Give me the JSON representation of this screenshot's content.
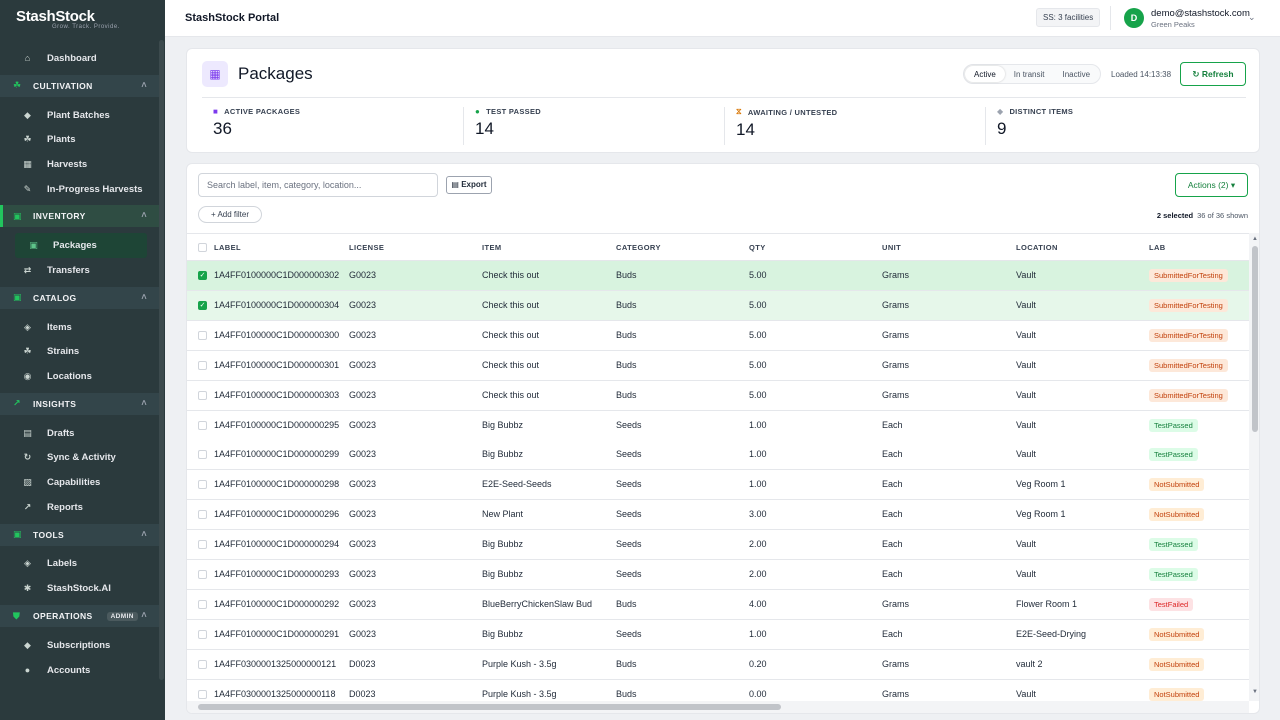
{
  "brand": {
    "name": "StashStock",
    "tagline": "Grow. Track. Provide."
  },
  "sidebar": {
    "dashboard": "Dashboard",
    "sections": [
      {
        "key": "cultivation",
        "label": "CULTIVATION",
        "items": [
          "Plant Batches",
          "Plants",
          "Harvests",
          "In-Progress Harvests"
        ]
      },
      {
        "key": "inventory",
        "label": "INVENTORY",
        "items": [
          "Packages",
          "Transfers"
        ]
      },
      {
        "key": "catalog",
        "label": "CATALOG",
        "items": [
          "Items",
          "Strains",
          "Locations"
        ]
      },
      {
        "key": "insights",
        "label": "INSIGHTS",
        "items": [
          "Drafts",
          "Sync & Activity",
          "Capabilities",
          "Reports"
        ]
      },
      {
        "key": "tools",
        "label": "TOOLS",
        "items": [
          "Labels",
          "StashStock.AI"
        ]
      },
      {
        "key": "operations",
        "label": "OPERATIONS",
        "badge": "ADMIN",
        "items": [
          "Subscriptions",
          "Accounts"
        ]
      }
    ]
  },
  "topbar": {
    "title": "StashStock Portal",
    "facilities": "SS: 3 facilities",
    "avatar_letter": "D",
    "email": "demo@stashstock.com",
    "org": "Green Peaks"
  },
  "header": {
    "title": "Packages",
    "filters": [
      "Active",
      "In transit",
      "Inactive"
    ],
    "loaded": "Loaded 14:13:38",
    "refresh": "Refresh",
    "stats": [
      {
        "label": "ACTIVE PACKAGES",
        "value": "36",
        "color": "#7c3aed"
      },
      {
        "label": "TEST PASSED",
        "value": "14",
        "color": "#16a34a"
      },
      {
        "label": "AWAITING / UNTESTED",
        "value": "14",
        "color": "#d97706"
      },
      {
        "label": "DISTINCT ITEMS",
        "value": "9",
        "color": "#9ca3af"
      }
    ]
  },
  "toolbar": {
    "search_placeholder": "Search label, item, category, location...",
    "export": "Export",
    "actions": "Actions (2)",
    "add_filter": "Add filter",
    "selected": "2 selected",
    "shown": "36 of 36 shown"
  },
  "table": {
    "columns": [
      "LABEL",
      "LICENSE",
      "ITEM",
      "CATEGORY",
      "QTY",
      "UNIT",
      "LOCATION",
      "LAB"
    ],
    "rows": [
      {
        "checked": true,
        "label": "1A4FF0100000C1D000000302",
        "license": "G0023",
        "item": "Check this out",
        "category": "Buds",
        "qty": "5.00",
        "unit": "Grams",
        "location": "Vault",
        "lab": "SubmittedForTesting"
      },
      {
        "checked": true,
        "label": "1A4FF0100000C1D000000304",
        "license": "G0023",
        "item": "Check this out",
        "category": "Buds",
        "qty": "5.00",
        "unit": "Grams",
        "location": "Vault",
        "lab": "SubmittedForTesting"
      },
      {
        "checked": false,
        "label": "1A4FF0100000C1D000000300",
        "license": "G0023",
        "item": "Check this out",
        "category": "Buds",
        "qty": "5.00",
        "unit": "Grams",
        "location": "Vault",
        "lab": "SubmittedForTesting"
      },
      {
        "checked": false,
        "label": "1A4FF0100000C1D000000301",
        "license": "G0023",
        "item": "Check this out",
        "category": "Buds",
        "qty": "5.00",
        "unit": "Grams",
        "location": "Vault",
        "lab": "SubmittedForTesting"
      },
      {
        "checked": false,
        "label": "1A4FF0100000C1D000000303",
        "license": "G0023",
        "item": "Check this out",
        "category": "Buds",
        "qty": "5.00",
        "unit": "Grams",
        "location": "Vault",
        "lab": "SubmittedForTesting"
      },
      {
        "checked": false,
        "label": "1A4FF0100000C1D000000295",
        "license": "G0023",
        "item": "Big Bubbz",
        "category": "Seeds",
        "qty": "1.00",
        "unit": "Each",
        "location": "Vault",
        "lab": "TestPassed"
      },
      {
        "checked": false,
        "label": "1A4FF0100000C1D000000299",
        "license": "G0023",
        "item": "Big Bubbz",
        "category": "Seeds",
        "qty": "1.00",
        "unit": "Each",
        "location": "Vault",
        "lab": "TestPassed"
      },
      {
        "checked": false,
        "label": "1A4FF0100000C1D000000298",
        "license": "G0023",
        "item": "E2E-Seed-Seeds",
        "category": "Seeds",
        "qty": "1.00",
        "unit": "Each",
        "location": "Veg Room 1",
        "lab": "NotSubmitted"
      },
      {
        "checked": false,
        "label": "1A4FF0100000C1D000000296",
        "license": "G0023",
        "item": "New Plant",
        "category": "Seeds",
        "qty": "3.00",
        "unit": "Each",
        "location": "Veg Room 1",
        "lab": "NotSubmitted"
      },
      {
        "checked": false,
        "label": "1A4FF0100000C1D000000294",
        "license": "G0023",
        "item": "Big Bubbz",
        "category": "Seeds",
        "qty": "2.00",
        "unit": "Each",
        "location": "Vault",
        "lab": "TestPassed"
      },
      {
        "checked": false,
        "label": "1A4FF0100000C1D000000293",
        "license": "G0023",
        "item": "Big Bubbz",
        "category": "Seeds",
        "qty": "2.00",
        "unit": "Each",
        "location": "Vault",
        "lab": "TestPassed"
      },
      {
        "checked": false,
        "label": "1A4FF0100000C1D000000292",
        "license": "G0023",
        "item": "BlueBerryChickenSlaw Bud",
        "category": "Buds",
        "qty": "4.00",
        "unit": "Grams",
        "location": "Flower Room 1",
        "lab": "TestFailed"
      },
      {
        "checked": false,
        "label": "1A4FF0100000C1D000000291",
        "license": "G0023",
        "item": "Big Bubbz",
        "category": "Seeds",
        "qty": "1.00",
        "unit": "Each",
        "location": "E2E-Seed-Drying",
        "lab": "NotSubmitted"
      },
      {
        "checked": false,
        "label": "1A4FF0300001325000000121",
        "license": "D0023",
        "item": "Purple Kush - 3.5g",
        "category": "Buds",
        "qty": "0.20",
        "unit": "Grams",
        "location": "vault 2",
        "lab": "NotSubmitted"
      },
      {
        "checked": false,
        "label": "1A4FF0300001325000000118",
        "license": "D0023",
        "item": "Purple Kush - 3.5g",
        "category": "Buds",
        "qty": "0.00",
        "unit": "Grams",
        "location": "Vault",
        "lab": "NotSubmitted"
      }
    ]
  }
}
